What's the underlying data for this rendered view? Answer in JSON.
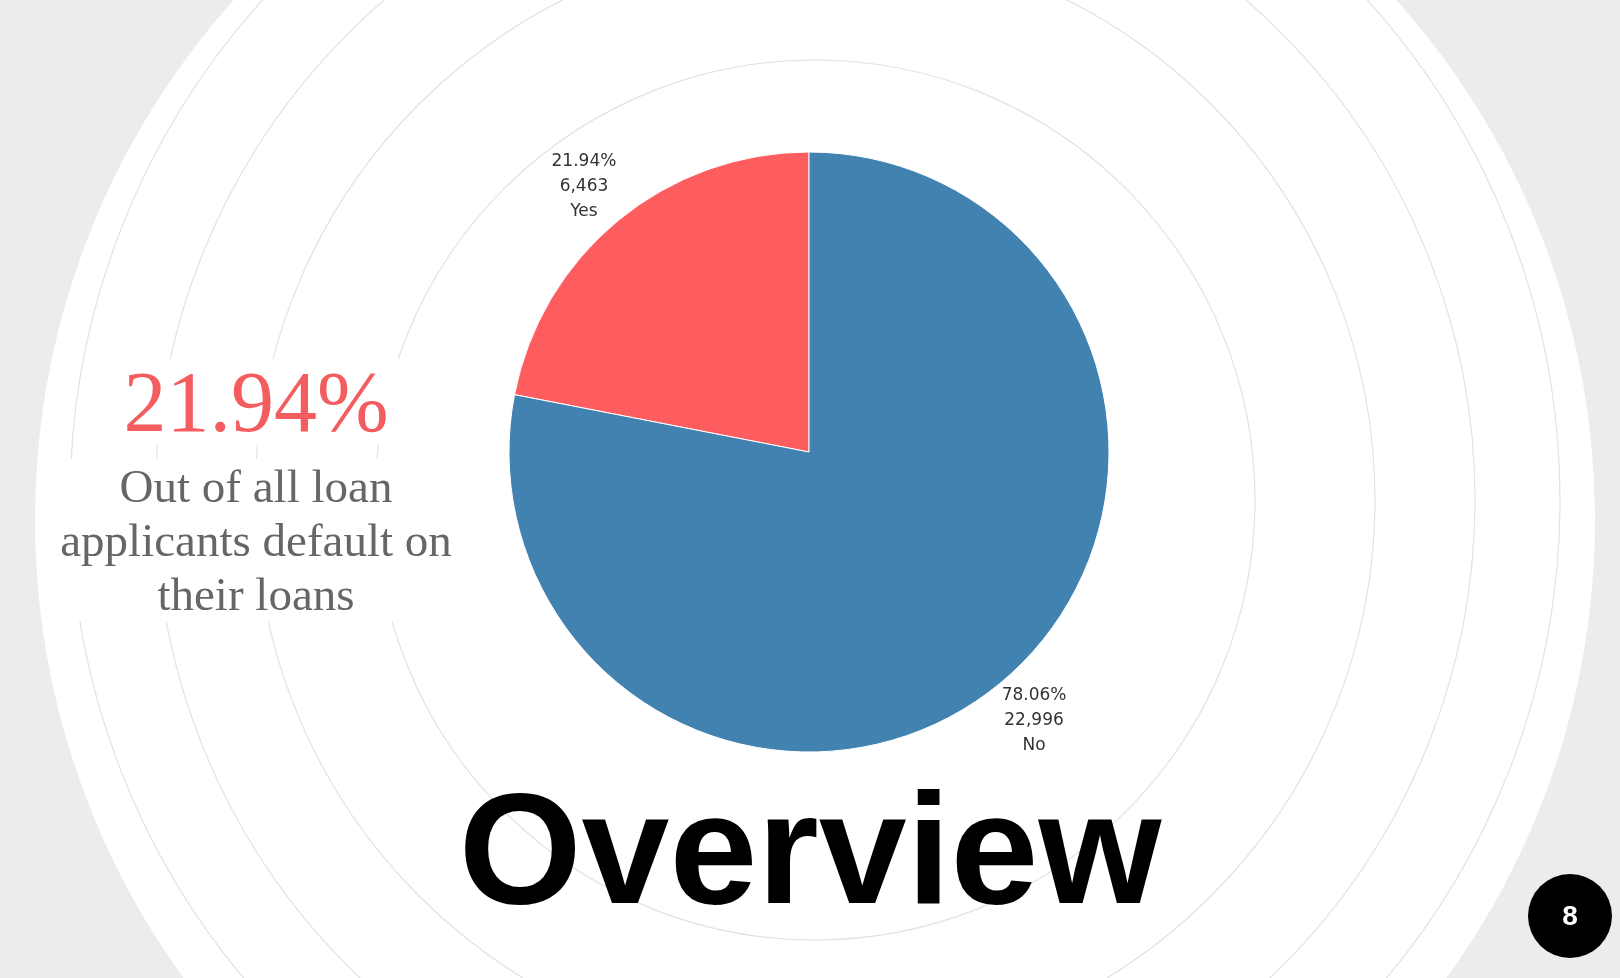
{
  "chart_data": {
    "type": "pie",
    "title": "Overview",
    "categories": [
      "Yes",
      "No"
    ],
    "values": [
      6463,
      22996
    ],
    "colors": [
      "#fe5d5f",
      "#4282b0"
    ],
    "value_labels": [
      "21.94%\n6,463",
      "78.06%\n22,996"
    ],
    "annotations": [
      "21.94%",
      "Out of all loan applicants default on their loans",
      "8"
    ]
  }
}
